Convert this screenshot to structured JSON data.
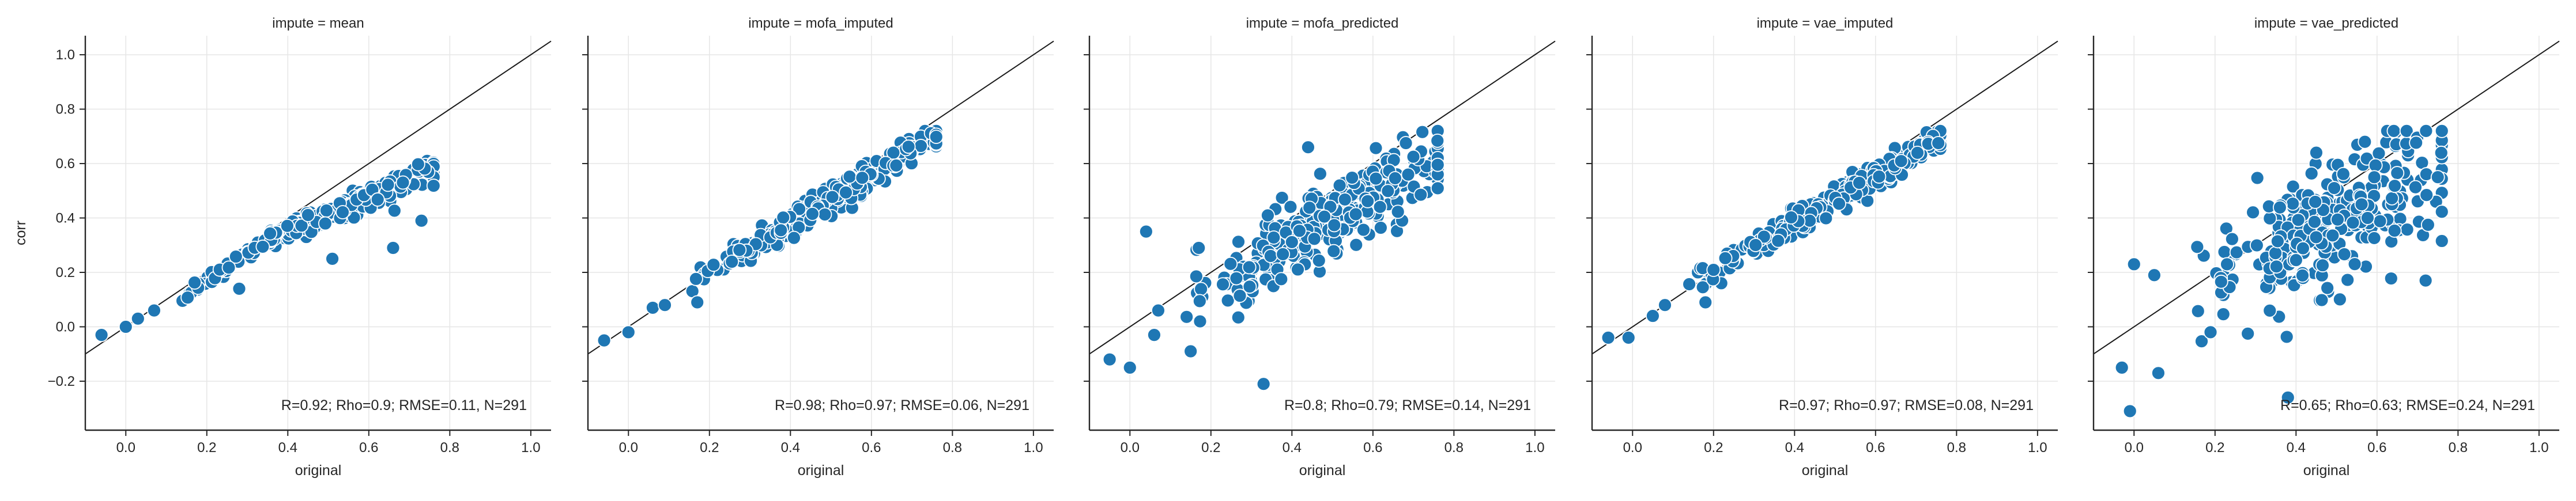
{
  "chart_data": {
    "type": "scatter",
    "facet_variable": "impute",
    "xlabel": "original",
    "ylabel": "corr",
    "xlim": [
      -0.1,
      1.05
    ],
    "ylim": [
      -0.38,
      1.07
    ],
    "xticks": [
      "0.0",
      "0.2",
      "0.4",
      "0.6",
      "0.8",
      "1.0"
    ],
    "yticks": [
      "−0.2",
      "0.0",
      "0.2",
      "0.4",
      "0.6",
      "0.8",
      "1.0"
    ],
    "grid": true,
    "identity_line": true,
    "point_color": "#1f77b4",
    "panels": [
      {
        "title": "impute = mean",
        "annotation": "R=0.92; Rho=0.9; RMSE=0.11, N=291",
        "profile": "mean",
        "seed": 11,
        "outliers": [
          [
            -0.06,
            -0.03
          ],
          [
            0.0,
            0.0
          ],
          [
            0.03,
            0.03
          ],
          [
            0.07,
            0.06
          ],
          [
            0.28,
            0.14
          ],
          [
            0.51,
            0.25
          ],
          [
            0.66,
            0.29
          ],
          [
            0.73,
            0.39
          ]
        ]
      },
      {
        "title": "impute = mofa_imputed",
        "annotation": "R=0.98; Rho=0.97; RMSE=0.06, N=291",
        "profile": "mofa_imputed",
        "seed": 23,
        "outliers": [
          [
            -0.06,
            -0.05
          ],
          [
            0.0,
            -0.02
          ],
          [
            0.06,
            0.07
          ],
          [
            0.09,
            0.08
          ],
          [
            0.17,
            0.09
          ]
        ]
      },
      {
        "title": "impute = mofa_predicted",
        "annotation": "R=0.8; Rho=0.79; RMSE=0.14, N=291",
        "profile": "mofa_predicted",
        "seed": 37,
        "outliers": [
          [
            -0.05,
            -0.12
          ],
          [
            0.0,
            -0.15
          ],
          [
            0.04,
            0.35
          ],
          [
            0.06,
            -0.03
          ],
          [
            0.07,
            0.06
          ],
          [
            0.15,
            -0.09
          ],
          [
            0.17,
            0.29
          ],
          [
            0.33,
            -0.21
          ],
          [
            0.44,
            0.66
          ]
        ]
      },
      {
        "title": "impute = vae_imputed",
        "annotation": "R=0.97; Rho=0.97; RMSE=0.08, N=291",
        "profile": "vae_imputed",
        "seed": 41,
        "outliers": [
          [
            -0.06,
            -0.04
          ],
          [
            -0.01,
            -0.04
          ],
          [
            0.05,
            0.04
          ],
          [
            0.08,
            0.08
          ],
          [
            0.18,
            0.09
          ]
        ]
      },
      {
        "title": "impute = vae_predicted",
        "annotation": "R=0.65; Rho=0.63; RMSE=0.24, N=291",
        "profile": "vae_predicted",
        "seed": 53,
        "outliers": [
          [
            -0.03,
            -0.15
          ],
          [
            -0.01,
            -0.31
          ],
          [
            0.0,
            0.23
          ],
          [
            0.05,
            0.19
          ],
          [
            0.06,
            -0.17
          ],
          [
            0.38,
            -0.26
          ],
          [
            0.45,
            0.64
          ],
          [
            0.57,
            0.68
          ],
          [
            0.72,
            0.17
          ],
          [
            0.75,
            0.55
          ]
        ]
      }
    ]
  }
}
